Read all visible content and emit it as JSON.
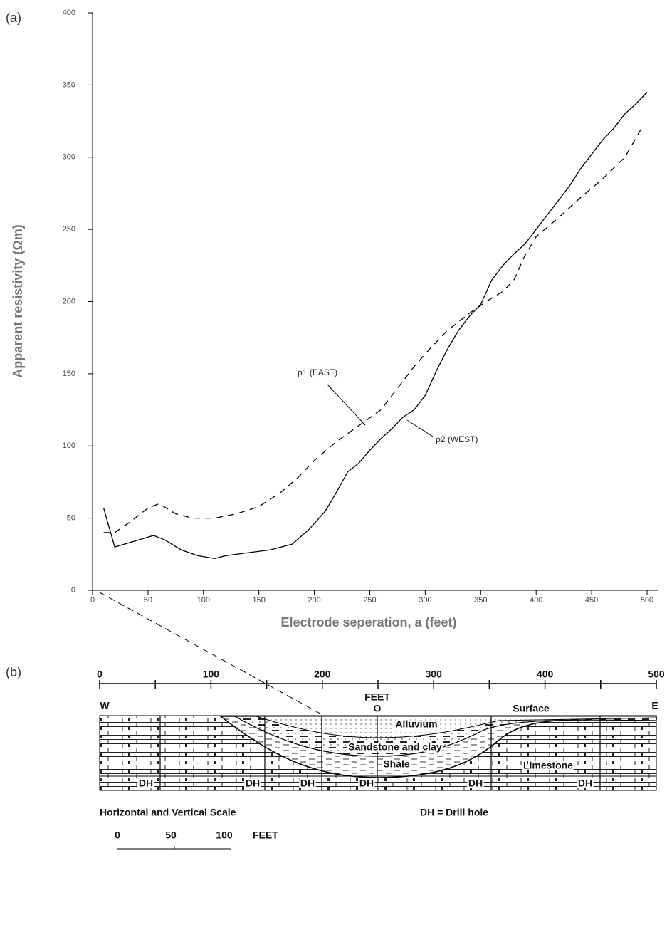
{
  "chart_data": {
    "type": "line",
    "xlabel": "Electrode seperation, a (feet)",
    "ylabel": "Apparent resistivity (Ωm)",
    "xlim": [
      0,
      500
    ],
    "ylim": [
      0,
      400
    ],
    "xticks": [
      0,
      50,
      100,
      150,
      200,
      250,
      300,
      350,
      400,
      450,
      500
    ],
    "yticks": [
      0,
      50,
      100,
      150,
      200,
      250,
      300,
      350,
      400
    ],
    "series": [
      {
        "name": "ρ1 (EAST)",
        "color": "#000000",
        "dash": true,
        "x": [
          10,
          20,
          35,
          50,
          60,
          75,
          90,
          110,
          130,
          150,
          170,
          185,
          200,
          220,
          240,
          260,
          275,
          290,
          305,
          320,
          340,
          355,
          370,
          380,
          390,
          400,
          420,
          440,
          460,
          480,
          495
        ],
        "values": [
          40,
          40,
          48,
          57,
          60,
          53,
          50,
          50,
          53,
          58,
          68,
          78,
          90,
          103,
          114,
          125,
          140,
          155,
          168,
          180,
          192,
          200,
          207,
          215,
          232,
          245,
          258,
          272,
          285,
          300,
          320
        ]
      },
      {
        "name": "ρ2 (WEST)",
        "color": "#000000",
        "dash": false,
        "x": [
          10,
          20,
          55,
          65,
          80,
          95,
          110,
          120,
          140,
          160,
          180,
          195,
          210,
          220,
          230,
          240,
          250,
          260,
          270,
          280,
          290,
          300,
          310,
          320,
          330,
          340,
          350,
          360,
          370,
          380,
          390,
          400,
          410,
          420,
          430,
          440,
          450,
          460,
          470,
          480,
          490,
          500
        ],
        "values": [
          57,
          30,
          38,
          35,
          28,
          24,
          22,
          24,
          26,
          28,
          32,
          42,
          55,
          68,
          82,
          88,
          97,
          105,
          112,
          120,
          125,
          135,
          152,
          167,
          180,
          190,
          198,
          215,
          225,
          233,
          240,
          250,
          260,
          270,
          280,
          292,
          302,
          312,
          320,
          330,
          337,
          345
        ]
      }
    ]
  },
  "panel_labels": [
    "(a)",
    "(b)"
  ],
  "cross_section": {
    "feet_ticks": [
      0,
      100,
      200,
      300,
      400,
      500
    ],
    "feet_label": "FEET",
    "west": "W",
    "origin": "O",
    "surface": "Surface",
    "east": "E",
    "layers": [
      "Alluvium",
      "Sandstone and clay",
      "Shale",
      "Limestone"
    ],
    "drill_holes": [
      "DH",
      "DH",
      "DH",
      "DH",
      "DH",
      "DH"
    ],
    "scale_caption": "Horizontal and Vertical Scale",
    "key": "DH = Drill hole",
    "scale_bar_ticks": [
      0,
      50,
      100
    ],
    "scale_bar_unit": "FEET"
  }
}
